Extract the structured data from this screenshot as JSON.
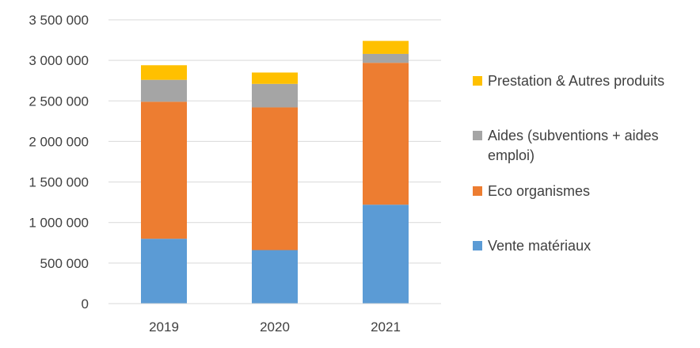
{
  "chart_data": {
    "type": "bar",
    "stacked": true,
    "categories": [
      "2019",
      "2020",
      "2021"
    ],
    "series": [
      {
        "name": "Vente matériaux",
        "color": "#5B9BD5",
        "values": [
          800000,
          660000,
          1220000
        ]
      },
      {
        "name": "Eco organismes",
        "color": "#ED7D31",
        "values": [
          1690000,
          1760000,
          1750000
        ]
      },
      {
        "name": "Aides (subventions + aides emploi)",
        "color": "#A5A5A5",
        "values": [
          270000,
          290000,
          110000
        ]
      },
      {
        "name": "Prestation & Autres produits",
        "color": "#FFC000",
        "values": [
          180000,
          140000,
          160000
        ]
      }
    ],
    "yticks": [
      "0",
      "500 000",
      "1 000 000",
      "1 500 000",
      "2 000 000",
      "2 500 000",
      "3 000 000",
      "3 500 000"
    ],
    "ylim": [
      0,
      3500000
    ],
    "grid": true,
    "legend_position": "right",
    "title": "",
    "xlabel": "",
    "ylabel": ""
  }
}
